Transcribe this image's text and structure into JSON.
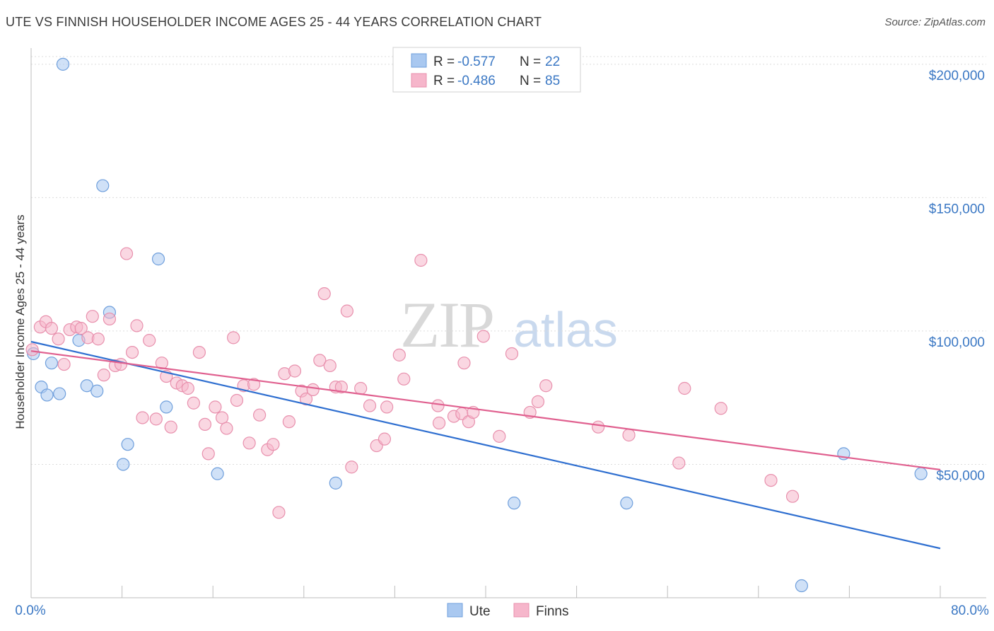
{
  "title": "UTE VS FINNISH HOUSEHOLDER INCOME AGES 25 - 44 YEARS CORRELATION CHART",
  "source": "Source: ZipAtlas.com",
  "watermark": {
    "zip": "ZIP",
    "atlas": "atlas"
  },
  "legend_top": {
    "rows": [
      {
        "r_label": "R =",
        "r_value": "-0.577",
        "n_label": "N =",
        "n_value": "22",
        "color": "#a9c8f0"
      },
      {
        "r_label": "R =",
        "r_value": "-0.486",
        "n_label": "N =",
        "n_value": "85",
        "color": "#f6b6cb"
      }
    ]
  },
  "legend_bottom": [
    {
      "label": "Ute",
      "color": "#a9c8f0"
    },
    {
      "label": "Finns",
      "color": "#f6b6cb"
    }
  ],
  "chart_data": {
    "type": "scatter",
    "title": "UTE VS FINNISH HOUSEHOLDER INCOME AGES 25 - 44 YEARS CORRELATION CHART",
    "xlabel": "",
    "ylabel": "Householder Income Ages 25 - 44 years",
    "xlim": [
      0,
      80
    ],
    "ylim": [
      0,
      205000
    ],
    "x_tick_labels": [
      "0.0%",
      "80.0%"
    ],
    "y_ticks": [
      50000,
      100000,
      150000,
      200000
    ],
    "y_tick_labels": [
      "$50,000",
      "$100,000",
      "$150,000",
      "$200,000"
    ],
    "grid": true,
    "series": [
      {
        "name": "Ute",
        "color": "#a9c8f0",
        "stroke": "#6f9fdc",
        "line_color": "#2f6fd0",
        "trend": [
          [
            0,
            96000
          ],
          [
            80,
            18500
          ]
        ],
        "points": [
          [
            2.8,
            200000
          ],
          [
            6.3,
            154500
          ],
          [
            11.2,
            127000
          ],
          [
            6.9,
            107000
          ],
          [
            4.2,
            96500
          ],
          [
            0.2,
            91500
          ],
          [
            1.8,
            88000
          ],
          [
            0.9,
            79000
          ],
          [
            1.4,
            76000
          ],
          [
            2.5,
            76500
          ],
          [
            4.9,
            79500
          ],
          [
            5.8,
            77500
          ],
          [
            11.9,
            71500
          ],
          [
            8.5,
            57500
          ],
          [
            8.1,
            50000
          ],
          [
            16.4,
            46500
          ],
          [
            26.8,
            43000
          ],
          [
            42.5,
            35500
          ],
          [
            52.4,
            35500
          ],
          [
            71.5,
            54000
          ],
          [
            78.3,
            46500
          ],
          [
            67.8,
            4500
          ]
        ]
      },
      {
        "name": "Finns",
        "color": "#f6b6cb",
        "stroke": "#e890ad",
        "line_color": "#e0608f",
        "trend": [
          [
            0,
            92500
          ],
          [
            80,
            48000
          ]
        ],
        "points": [
          [
            0.1,
            93000
          ],
          [
            0.8,
            101500
          ],
          [
            1.3,
            103500
          ],
          [
            1.8,
            101000
          ],
          [
            2.4,
            97000
          ],
          [
            2.9,
            87500
          ],
          [
            3.4,
            100500
          ],
          [
            4.0,
            101500
          ],
          [
            4.4,
            101000
          ],
          [
            5.0,
            97500
          ],
          [
            5.4,
            105500
          ],
          [
            5.9,
            97000
          ],
          [
            6.4,
            83500
          ],
          [
            6.9,
            104500
          ],
          [
            7.4,
            87000
          ],
          [
            7.9,
            87500
          ],
          [
            8.4,
            129000
          ],
          [
            8.9,
            92000
          ],
          [
            9.3,
            102000
          ],
          [
            9.8,
            67500
          ],
          [
            10.4,
            96500
          ],
          [
            11.0,
            67000
          ],
          [
            11.5,
            88000
          ],
          [
            11.9,
            83000
          ],
          [
            12.3,
            64000
          ],
          [
            12.8,
            80500
          ],
          [
            13.3,
            79500
          ],
          [
            13.8,
            78500
          ],
          [
            14.3,
            73000
          ],
          [
            14.8,
            92000
          ],
          [
            15.3,
            65000
          ],
          [
            15.6,
            54000
          ],
          [
            16.2,
            71500
          ],
          [
            16.8,
            67500
          ],
          [
            17.2,
            63500
          ],
          [
            17.8,
            97500
          ],
          [
            18.1,
            74000
          ],
          [
            18.7,
            79500
          ],
          [
            19.2,
            58000
          ],
          [
            19.6,
            80000
          ],
          [
            20.1,
            68500
          ],
          [
            20.8,
            55500
          ],
          [
            21.3,
            57500
          ],
          [
            21.8,
            32000
          ],
          [
            22.3,
            84000
          ],
          [
            22.7,
            66000
          ],
          [
            23.2,
            85000
          ],
          [
            23.8,
            77500
          ],
          [
            24.2,
            74500
          ],
          [
            24.8,
            78000
          ],
          [
            25.4,
            89000
          ],
          [
            25.8,
            114000
          ],
          [
            26.3,
            87000
          ],
          [
            26.8,
            79000
          ],
          [
            27.3,
            79000
          ],
          [
            27.8,
            107500
          ],
          [
            28.2,
            49000
          ],
          [
            29.0,
            78500
          ],
          [
            29.8,
            72000
          ],
          [
            30.4,
            57000
          ],
          [
            31.1,
            59500
          ],
          [
            31.3,
            71500
          ],
          [
            32.4,
            91000
          ],
          [
            32.8,
            82000
          ],
          [
            34.3,
            126500
          ],
          [
            35.8,
            72000
          ],
          [
            35.9,
            65500
          ],
          [
            37.2,
            68000
          ],
          [
            37.9,
            69000
          ],
          [
            38.1,
            88000
          ],
          [
            38.5,
            66000
          ],
          [
            38.9,
            69500
          ],
          [
            39.8,
            98000
          ],
          [
            41.2,
            60500
          ],
          [
            42.3,
            91500
          ],
          [
            43.9,
            69500
          ],
          [
            44.6,
            73500
          ],
          [
            45.3,
            79500
          ],
          [
            49.9,
            64000
          ],
          [
            52.6,
            61000
          ],
          [
            57.0,
            50500
          ],
          [
            57.5,
            78500
          ],
          [
            60.7,
            71000
          ],
          [
            65.1,
            44000
          ],
          [
            67.0,
            38000
          ]
        ]
      }
    ]
  }
}
